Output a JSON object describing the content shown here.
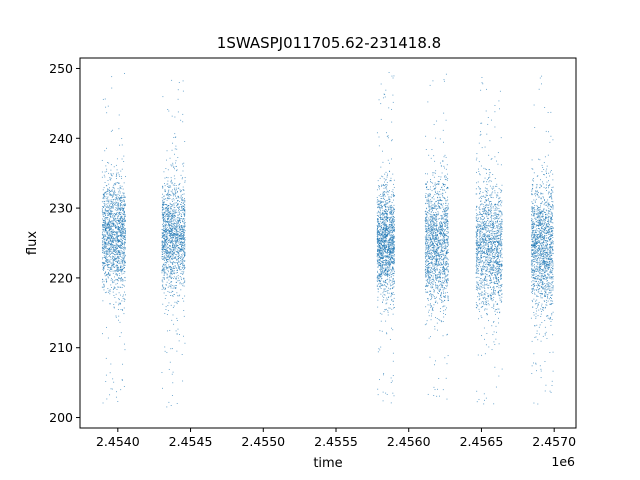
{
  "chart_data": {
    "type": "scatter",
    "title": "1SWASPJ011705.62-231418.8",
    "xlabel": "time",
    "ylabel": "flux",
    "x_offset_label": "1e6",
    "xlim": [
      2453740,
      2457150
    ],
    "ylim": [
      198.5,
      251.5
    ],
    "x_ticks": [
      2454000,
      2454500,
      2455000,
      2455500,
      2456000,
      2456500,
      2457000
    ],
    "x_tick_labels": [
      "2.4540",
      "2.4545",
      "2.4550",
      "2.4555",
      "2.4560",
      "2.4565",
      "2.4570"
    ],
    "y_ticks": [
      200,
      210,
      220,
      230,
      240,
      250
    ],
    "y_tick_labels": [
      "200",
      "210",
      "220",
      "230",
      "240",
      "250"
    ],
    "grid": false,
    "marker_color": "#1f77b4",
    "series": [
      {
        "points_summary": "dense scatter clusters (observing seasons)",
        "seasons": [
          {
            "x_start": 2453890,
            "x_end": 2454050,
            "y_center": 226,
            "y_spread": 4,
            "y_min": 202,
            "y_max": 250
          },
          {
            "x_start": 2454300,
            "x_end": 2454460,
            "y_center": 226,
            "y_spread": 4,
            "y_min": 201,
            "y_max": 249.5
          },
          {
            "x_start": 2455780,
            "x_end": 2455900,
            "y_center": 225,
            "y_spread": 4,
            "y_min": 202,
            "y_max": 249.5
          },
          {
            "x_start": 2456110,
            "x_end": 2456270,
            "y_center": 225,
            "y_spread": 4.5,
            "y_min": 201.5,
            "y_max": 250
          },
          {
            "x_start": 2456460,
            "x_end": 2456640,
            "y_center": 224.5,
            "y_spread": 4.5,
            "y_min": 201.5,
            "y_max": 250
          },
          {
            "x_start": 2456840,
            "x_end": 2456990,
            "y_center": 224.5,
            "y_spread": 4.5,
            "y_min": 202,
            "y_max": 249.5
          }
        ]
      }
    ]
  }
}
